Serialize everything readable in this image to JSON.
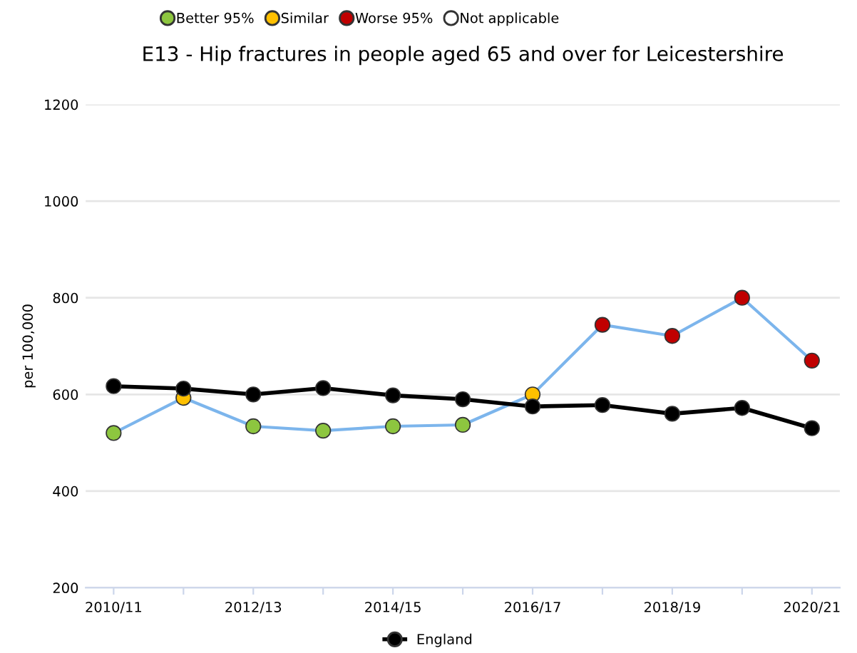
{
  "chart_data": {
    "type": "line",
    "title": "E13 - Hip fractures in people aged 65 and over for Leicestershire",
    "ylabel": "per 100,000",
    "categories": [
      "2010/11",
      null,
      "2012/13",
      null,
      "2014/15",
      null,
      "2016/17",
      null,
      "2018/19",
      null,
      "2020/21"
    ],
    "series": [
      {
        "color": "#7cb5ec",
        "values": [
          520,
          593,
          534,
          525,
          534,
          537,
          600,
          744,
          721,
          800,
          670
        ],
        "colors": [
          "#8dc63f",
          "#ffc000",
          "#8dc63f",
          "#8dc63f",
          "#8dc63f",
          "#8dc63f",
          "#ffc000",
          "#c00000",
          "#c00000",
          "#c00000",
          "#c00000"
        ]
      },
      {
        "name": "England",
        "color": "#000000",
        "values": [
          617,
          612,
          600,
          613,
          598,
          590,
          575,
          578,
          560,
          572,
          530
        ]
      },
      {
        "name": "Better 95%",
        "type": "scatter",
        "color": "#8dc63f",
        "values": [
          null,
          null,
          null,
          null,
          null,
          null,
          null,
          null,
          null,
          null,
          null
        ]
      },
      {
        "name": "Similar",
        "type": "scatter",
        "color": "#ffc000",
        "values": [
          null,
          null,
          null,
          null,
          null,
          null,
          null,
          null,
          null,
          null,
          null
        ]
      },
      {
        "name": "Worse 95%",
        "type": "scatter",
        "color": "#c00000",
        "values": [
          null,
          null,
          null,
          null,
          null,
          null,
          null,
          null,
          null,
          null,
          null
        ]
      },
      {
        "name": "Not applicable",
        "type": "scatter",
        "color": "#ffffff",
        "values": [
          null,
          null,
          null,
          null,
          null,
          null,
          null,
          null,
          null,
          null,
          null
        ]
      }
    ],
    "ylim": [
      200,
      1200
    ],
    "yticks": [
      200,
      400,
      600,
      800,
      1000,
      1200
    ],
    "grid": "y",
    "marker": "circle",
    "legend": "top"
  }
}
